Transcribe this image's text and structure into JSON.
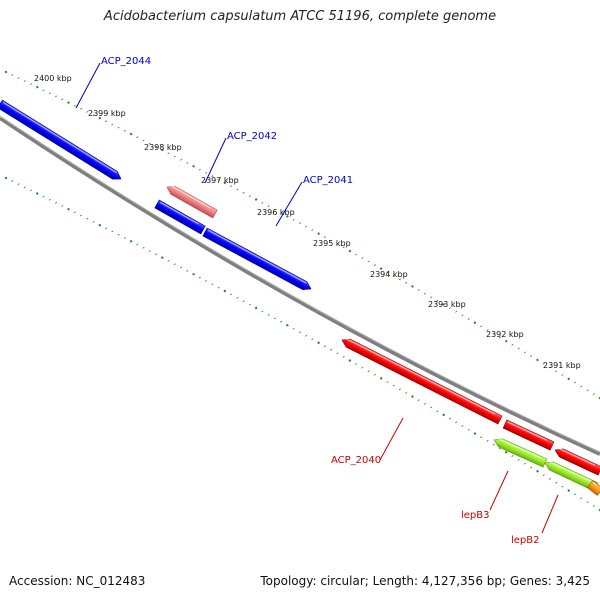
{
  "title": "Acidobacterium capsulatum ATCC 51196, complete genome",
  "footer": {
    "accession": "Accession: NC_012483",
    "topology": "Topology: circular; Length: 4,127,356 bp; Genes: 3,425"
  },
  "colors": {
    "forward_cds": "#1a1aff",
    "reverse_cds": "#ff1a1a",
    "reverse_cds_light": "#f08080",
    "yellowgreen": "#9aee2a",
    "orange": "#ff9a1a",
    "backbone": "#808080",
    "ruler": "#1a8a1a",
    "forward_label": "#0000cc",
    "reverse_label": "#cc0000"
  },
  "ruler": {
    "unit": "kbp",
    "ticks": [
      "2400 kbp",
      "2399 kbp",
      "2398 kbp",
      "2397 kbp",
      "2396 kbp",
      "2395 kbp",
      "2394 kbp",
      "2393 kbp",
      "2392 kbp",
      "2391 kbp"
    ]
  },
  "genes": {
    "forward": [
      {
        "label": "ACP_2044",
        "strand": "+",
        "color": "forward_cds"
      },
      {
        "label": "ACP_2042",
        "strand": "-",
        "color": "reverse_cds_light"
      },
      {
        "label": "ACP_2041",
        "strand": "+",
        "color": "forward_cds"
      }
    ],
    "reverse": [
      {
        "label": "ACP_2040",
        "strand": "-",
        "color": "reverse_cds"
      },
      {
        "label": "lepB3",
        "strand": "-",
        "color": "yellowgreen"
      },
      {
        "label": "lepB2",
        "strand": "-",
        "color": "yellowgreen"
      }
    ]
  }
}
